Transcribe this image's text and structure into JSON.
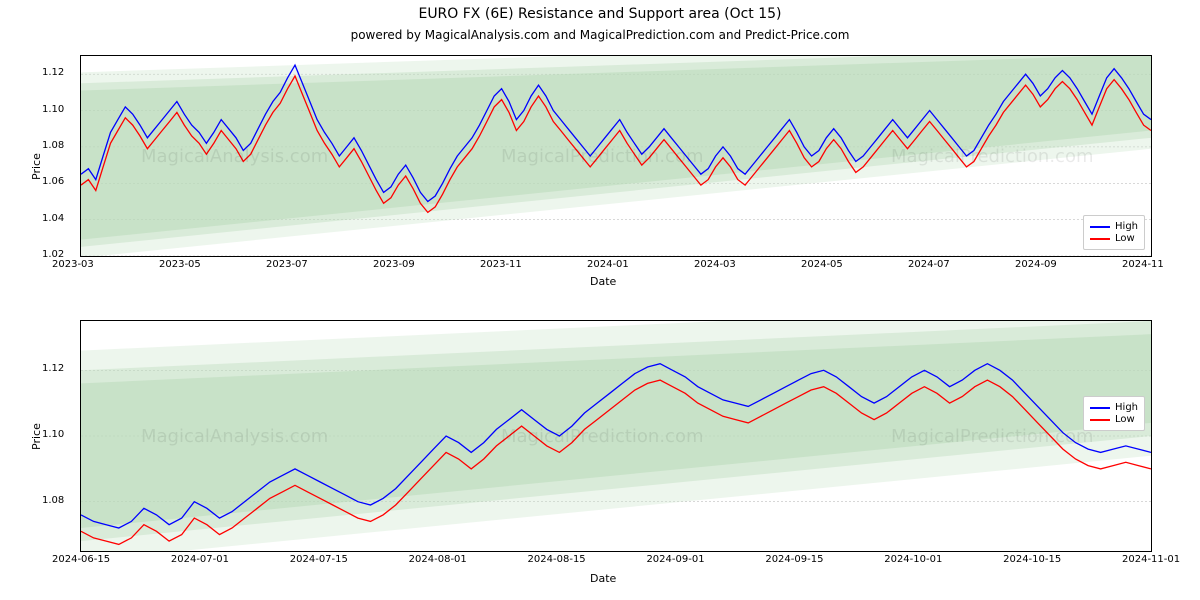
{
  "title_main": "EURO FX (6E) Resistance and Support area (Oct 15)",
  "title_sub": "powered by MagicalAnalysis.com and MagicalPrediction.com and Predict-Price.com",
  "title_main_fontsize": 14,
  "title_sub_fontsize": 12,
  "watermark_top": "MagicalAnalysis.com",
  "watermark_bottom": "MagicalPrediction.com",
  "colors": {
    "high": "#0000ff",
    "low": "#ff0000",
    "band_fill": "#a8d0a8",
    "band_fill_light": "#cce4cc",
    "grid": "#b0b0b0",
    "border": "#000000",
    "bg": "#ffffff"
  },
  "legend": {
    "items": [
      {
        "label": "High",
        "color": "#0000ff"
      },
      {
        "label": "Low",
        "color": "#ff0000"
      }
    ]
  },
  "top_chart": {
    "type": "line-with-band",
    "xlabel": "Date",
    "ylabel": "Price",
    "ylim": [
      1.02,
      1.13
    ],
    "yticks": [
      1.02,
      1.04,
      1.06,
      1.08,
      1.1,
      1.12
    ],
    "xticks": [
      "2023-03",
      "2023-05",
      "2023-07",
      "2023-09",
      "2023-11",
      "2024-01",
      "2024-03",
      "2024-05",
      "2024-07",
      "2024-09",
      "2024-11"
    ],
    "x_range": [
      0,
      660
    ],
    "band_top_start": 1.115,
    "band_top_end": 1.135,
    "band_bot_start": 1.025,
    "band_bot_end": 1.085,
    "high_series": [
      1.065,
      1.068,
      1.062,
      1.075,
      1.088,
      1.095,
      1.102,
      1.098,
      1.092,
      1.085,
      1.09,
      1.095,
      1.1,
      1.105,
      1.098,
      1.092,
      1.088,
      1.082,
      1.088,
      1.095,
      1.09,
      1.085,
      1.078,
      1.082,
      1.09,
      1.098,
      1.105,
      1.11,
      1.118,
      1.125,
      1.115,
      1.105,
      1.095,
      1.088,
      1.082,
      1.075,
      1.08,
      1.085,
      1.078,
      1.07,
      1.062,
      1.055,
      1.058,
      1.065,
      1.07,
      1.063,
      1.055,
      1.05,
      1.053,
      1.06,
      1.068,
      1.075,
      1.08,
      1.085,
      1.092,
      1.1,
      1.108,
      1.112,
      1.105,
      1.095,
      1.1,
      1.108,
      1.114,
      1.108,
      1.1,
      1.095,
      1.09,
      1.085,
      1.08,
      1.075,
      1.08,
      1.085,
      1.09,
      1.095,
      1.088,
      1.082,
      1.076,
      1.08,
      1.085,
      1.09,
      1.085,
      1.08,
      1.075,
      1.07,
      1.065,
      1.068,
      1.075,
      1.08,
      1.075,
      1.068,
      1.065,
      1.07,
      1.075,
      1.08,
      1.085,
      1.09,
      1.095,
      1.088,
      1.08,
      1.075,
      1.078,
      1.085,
      1.09,
      1.085,
      1.078,
      1.072,
      1.075,
      1.08,
      1.085,
      1.09,
      1.095,
      1.09,
      1.085,
      1.09,
      1.095,
      1.1,
      1.095,
      1.09,
      1.085,
      1.08,
      1.075,
      1.078,
      1.085,
      1.092,
      1.098,
      1.105,
      1.11,
      1.115,
      1.12,
      1.115,
      1.108,
      1.112,
      1.118,
      1.122,
      1.118,
      1.112,
      1.105,
      1.098,
      1.108,
      1.118,
      1.123,
      1.118,
      1.112,
      1.105,
      1.098,
      1.095
    ],
    "low_series_offset": -0.006
  },
  "bottom_chart": {
    "type": "line-with-band",
    "xlabel": "Date",
    "ylabel": "Price",
    "ylim": [
      1.065,
      1.135
    ],
    "yticks": [
      1.08,
      1.1,
      1.12
    ],
    "xticks": [
      "2024-06-15",
      "2024-07-01",
      "2024-07-15",
      "2024-08-01",
      "2024-08-15",
      "2024-09-01",
      "2024-09-15",
      "2024-10-01",
      "2024-10-15",
      "2024-11-01"
    ],
    "x_range": [
      0,
      140
    ],
    "band_top_start": 1.12,
    "band_top_end": 1.135,
    "band_bot_start": 1.068,
    "band_bot_end": 1.1,
    "high_series": [
      1.076,
      1.074,
      1.073,
      1.072,
      1.074,
      1.078,
      1.076,
      1.073,
      1.075,
      1.08,
      1.078,
      1.075,
      1.077,
      1.08,
      1.083,
      1.086,
      1.088,
      1.09,
      1.088,
      1.086,
      1.084,
      1.082,
      1.08,
      1.079,
      1.081,
      1.084,
      1.088,
      1.092,
      1.096,
      1.1,
      1.098,
      1.095,
      1.098,
      1.102,
      1.105,
      1.108,
      1.105,
      1.102,
      1.1,
      1.103,
      1.107,
      1.11,
      1.113,
      1.116,
      1.119,
      1.121,
      1.122,
      1.12,
      1.118,
      1.115,
      1.113,
      1.111,
      1.11,
      1.109,
      1.111,
      1.113,
      1.115,
      1.117,
      1.119,
      1.12,
      1.118,
      1.115,
      1.112,
      1.11,
      1.112,
      1.115,
      1.118,
      1.12,
      1.118,
      1.115,
      1.117,
      1.12,
      1.122,
      1.12,
      1.117,
      1.113,
      1.109,
      1.105,
      1.101,
      1.098,
      1.096,
      1.095,
      1.096,
      1.097,
      1.096,
      1.095
    ],
    "low_series_offset": -0.005
  }
}
